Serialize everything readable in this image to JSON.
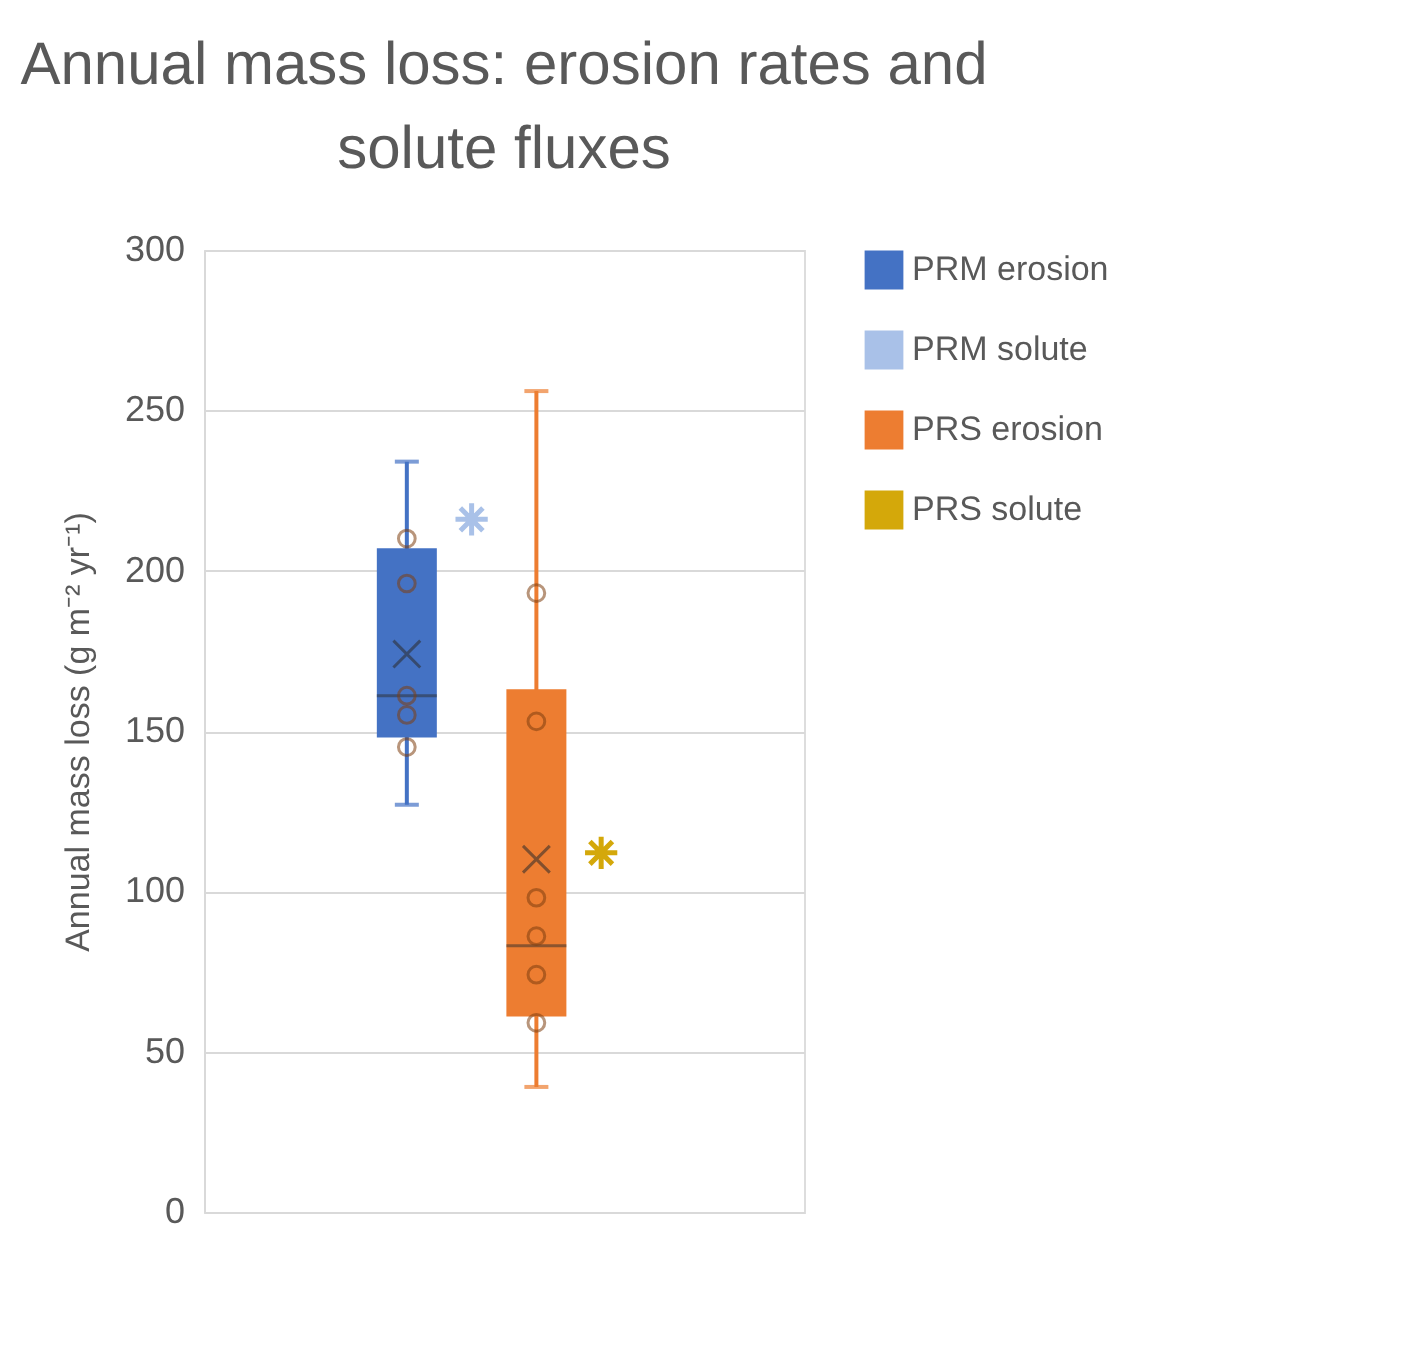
{
  "chart_data": {
    "type": "box",
    "title": "Annual mass loss: erosion rates and solute fluxes",
    "ylabel": "Annual mass loss (g m⁻² yr⁻¹)",
    "categories": [
      null
    ],
    "series": [
      {
        "name": "PRM erosion",
        "color": "#4472c4",
        "boxes": [
          {
            "low": 127,
            "q1": 148,
            "median": 161,
            "q3": 207,
            "high": 234,
            "mean": 174,
            "outliers": [
              210,
              196,
              161,
              155,
              145
            ]
          }
        ]
      },
      {
        "name": "PRM solute",
        "type": "scatter",
        "color": "#a9c1e8",
        "values": [
          216
        ],
        "marker": "cross"
      },
      {
        "name": "PRS erosion",
        "color": "#ed7d31",
        "boxes": [
          {
            "low": 39,
            "q1": 61,
            "median": 83,
            "q3": 163,
            "high": 256,
            "mean": 110,
            "outliers": [
              193,
              153,
              98,
              86,
              74,
              59
            ]
          }
        ]
      },
      {
        "name": "PRS solute",
        "type": "scatter",
        "color": "#d4a80a",
        "values": [
          112
        ],
        "marker": "cross"
      }
    ],
    "ylim": [
      0,
      300
    ],
    "yticks": [
      0,
      50,
      100,
      150,
      200,
      250,
      300
    ],
    "grid": "y",
    "legend": "right",
    "tick_labels": "y"
  }
}
